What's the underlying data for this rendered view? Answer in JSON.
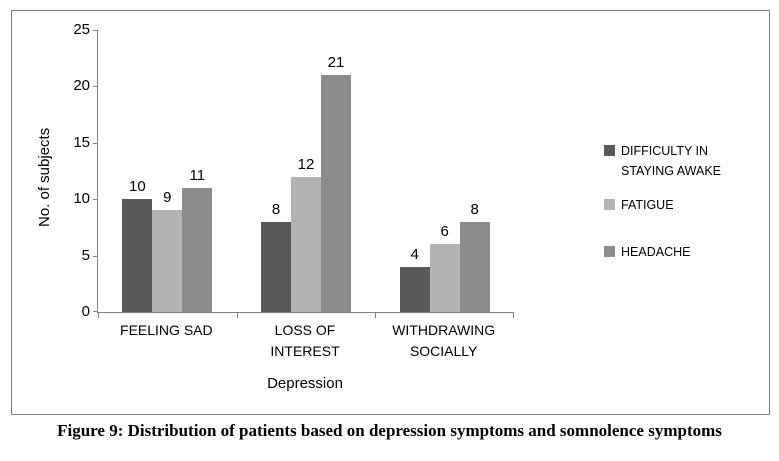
{
  "figure": {
    "caption": "Figure 9: Distribution of patients based on depression symptoms and somnolence symptoms"
  },
  "chart_data": {
    "type": "bar",
    "title": "",
    "categories": [
      "FEELING SAD",
      "LOSS OF INTEREST",
      "WITHDRAWING SOCIALLY"
    ],
    "series": [
      {
        "name": "DIFFICULTY IN STAYING AWAKE",
        "color": "#595959",
        "values": [
          10,
          8,
          4
        ]
      },
      {
        "name": "FATIGUE",
        "color": "#B3B3B3",
        "values": [
          9,
          12,
          6
        ]
      },
      {
        "name": "HEADACHE",
        "color": "#8C8C8C",
        "values": [
          11,
          21,
          8
        ]
      }
    ],
    "xlabel": "Depression",
    "ylabel": "No. of subjects",
    "ylim": [
      0,
      25
    ],
    "yticks": [
      0,
      5,
      10,
      15,
      20,
      25
    ],
    "grid": false,
    "legend_position": "right",
    "axis_color": "#808080"
  }
}
